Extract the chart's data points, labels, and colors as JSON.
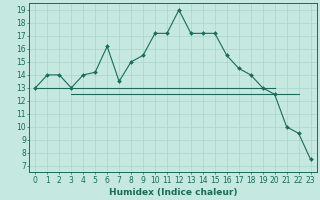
{
  "line1_x": [
    0,
    1,
    2,
    3,
    4,
    5,
    6,
    7,
    8,
    9,
    10,
    11,
    12,
    13,
    14,
    15,
    16,
    17,
    18,
    19,
    20,
    21,
    22,
    23
  ],
  "line1_y": [
    13.0,
    14.0,
    14.0,
    13.0,
    14.0,
    14.2,
    16.2,
    13.5,
    15.0,
    15.5,
    17.2,
    17.2,
    19.0,
    17.2,
    17.2,
    17.2,
    15.5,
    14.5,
    14.0,
    13.0,
    12.5,
    10.0,
    9.5,
    7.5
  ],
  "line2_x": [
    0,
    20
  ],
  "line2_y": [
    13.0,
    13.0
  ],
  "line3_x": [
    3,
    22
  ],
  "line3_y": [
    12.5,
    12.5
  ],
  "bg_color": "#c5e8e0",
  "line_color": "#1a6b5a",
  "grid_major_color": "#aad4cc",
  "grid_minor_color": "#bad8d2",
  "xlabel": "Humidex (Indice chaleur)",
  "xlim": [
    -0.5,
    23.5
  ],
  "ylim": [
    6.5,
    19.5
  ],
  "ytick_vals": [
    7,
    8,
    9,
    10,
    11,
    12,
    13,
    14,
    15,
    16,
    17,
    18,
    19
  ],
  "ytick_labels": [
    "7",
    "8",
    "9",
    "10",
    "11",
    "12",
    "13",
    "14",
    "15",
    "16",
    "17",
    "18",
    "19"
  ],
  "xtick_vals": [
    0,
    1,
    2,
    3,
    4,
    5,
    6,
    7,
    8,
    9,
    10,
    11,
    12,
    13,
    14,
    15,
    16,
    17,
    18,
    19,
    20,
    21,
    22,
    23
  ],
  "xtick_labels": [
    "0",
    "1",
    "2",
    "3",
    "4",
    "5",
    "6",
    "7",
    "8",
    "9",
    "10",
    "11",
    "12",
    "13",
    "14",
    "15",
    "16",
    "17",
    "18",
    "19",
    "20",
    "21",
    "22",
    "23"
  ],
  "tick_fontsize": 5.5,
  "xlabel_fontsize": 6.5,
  "marker_size": 2.0,
  "line_width": 0.8
}
